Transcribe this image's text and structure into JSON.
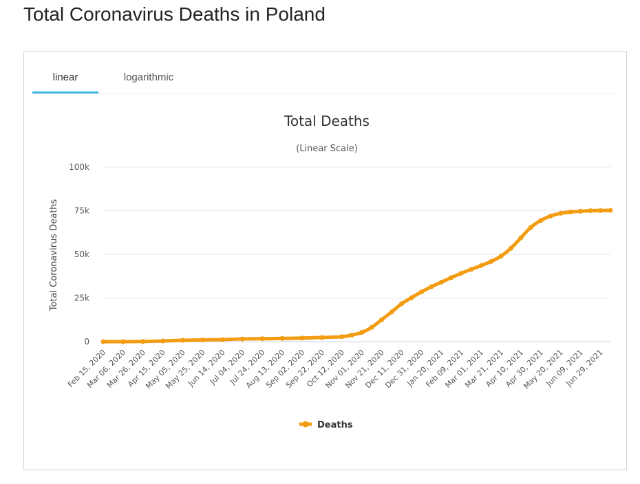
{
  "page": {
    "title": "Total Coronavirus Deaths in Poland"
  },
  "tabs": [
    {
      "label": "linear",
      "active": true
    },
    {
      "label": "logarithmic",
      "active": false
    }
  ],
  "colors": {
    "series": "#f39c12",
    "tab_active": "#3cb8e8",
    "grid": "#e6e6e6",
    "baseline": "#ccd6eb"
  },
  "chart_data": {
    "type": "line",
    "title": "Total Deaths",
    "subtitle": "(Linear Scale)",
    "xlabel": "",
    "ylabel": "Total Coronavirus Deaths",
    "ylim": [
      0,
      100000
    ],
    "yticks": [
      0,
      25000,
      50000,
      75000,
      100000
    ],
    "ytick_labels": [
      "0",
      "25k",
      "50k",
      "75k",
      "100k"
    ],
    "xlim": [
      "2020-02-15",
      "2021-07-09"
    ],
    "xtick_labels": [
      "Feb 15, 2020",
      "Mar 06, 2020",
      "Mar 26, 2020",
      "Apr 15, 2020",
      "May 05, 2020",
      "May 25, 2020",
      "Jun 14, 2020",
      "Jul 04, 2020",
      "Jul 24, 2020",
      "Aug 13, 2020",
      "Sep 02, 2020",
      "Sep 22, 2020",
      "Oct 12, 2020",
      "Nov 01, 2020",
      "Nov 21, 2020",
      "Dec 11, 2020",
      "Dec 31, 2020",
      "Jan 20, 2021",
      "Feb 09, 2021",
      "Mar 01, 2021",
      "Mar 21, 2021",
      "Apr 10, 2021",
      "Apr 30, 2021",
      "May 20, 2021",
      "Jun 09, 2021",
      "Jun 29, 2021"
    ],
    "grid": true,
    "legend_position": "bottom-center",
    "series": [
      {
        "name": "Deaths",
        "x": [
          "2020-02-15",
          "2020-03-06",
          "2020-03-26",
          "2020-04-15",
          "2020-05-05",
          "2020-05-25",
          "2020-06-14",
          "2020-07-04",
          "2020-07-24",
          "2020-08-13",
          "2020-09-02",
          "2020-09-22",
          "2020-10-12",
          "2020-10-22",
          "2020-11-01",
          "2020-11-11",
          "2020-11-21",
          "2020-12-01",
          "2020-12-11",
          "2020-12-21",
          "2020-12-31",
          "2021-01-10",
          "2021-01-20",
          "2021-01-30",
          "2021-02-09",
          "2021-02-19",
          "2021-03-01",
          "2021-03-11",
          "2021-03-21",
          "2021-03-31",
          "2021-04-10",
          "2021-04-20",
          "2021-04-30",
          "2021-05-10",
          "2021-05-20",
          "2021-05-30",
          "2021-06-09",
          "2021-06-19",
          "2021-06-29",
          "2021-07-09"
        ],
        "y": [
          0,
          0,
          100,
          400,
          800,
          1000,
          1200,
          1550,
          1700,
          1850,
          2050,
          2400,
          2850,
          3800,
          5300,
          8200,
          12600,
          17000,
          21700,
          25200,
          28500,
          31500,
          34100,
          36700,
          39200,
          41400,
          43600,
          45900,
          49000,
          53500,
          59500,
          65500,
          69400,
          72000,
          73500,
          74300,
          74700,
          75000,
          75100,
          75200
        ]
      }
    ]
  }
}
